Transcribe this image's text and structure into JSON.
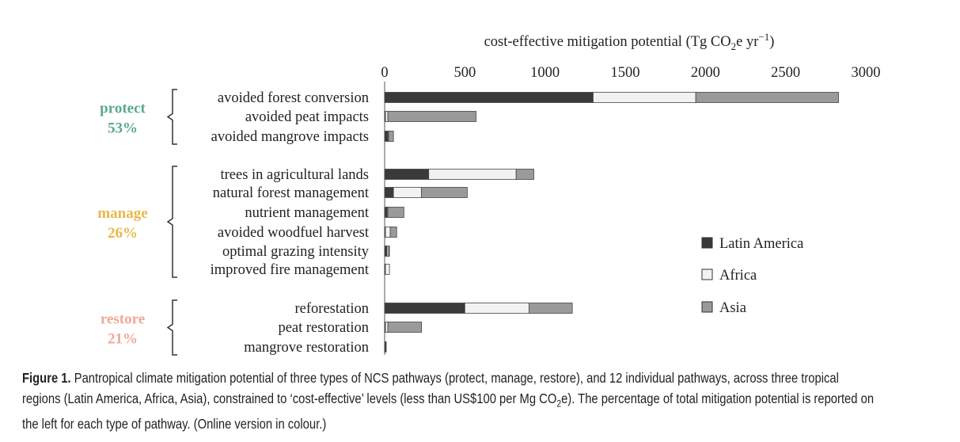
{
  "chart_data": {
    "type": "bar",
    "orientation": "horizontal",
    "stacked": true,
    "xlabel_parts": {
      "pre": "cost-effective mitigation potential (Tg CO",
      "sub": "2",
      "mid": "e yr",
      "sup": "−1",
      "post": ")"
    },
    "xlim": [
      0,
      3000
    ],
    "xticks": [
      0,
      500,
      1000,
      1500,
      2000,
      2500,
      3000
    ],
    "grid": false,
    "legend_position": "right",
    "series": [
      {
        "name": "Latin America",
        "color": "#3a3a3a"
      },
      {
        "name": "Africa",
        "color": "#f2f2f2"
      },
      {
        "name": "Asia",
        "color": "#9a9a9a"
      }
    ],
    "groups": [
      {
        "label": "protect",
        "percent": "53%",
        "color": "#5aaa8a",
        "pathways": [
          {
            "name": "avoided forest conversion",
            "values": [
              1300,
              640,
              890
            ]
          },
          {
            "name": "avoided peat impacts",
            "values": [
              5,
              15,
              550
            ]
          },
          {
            "name": "avoided mangrove impacts",
            "values": [
              20,
              5,
              30
            ]
          }
        ]
      },
      {
        "label": "manage",
        "percent": "26%",
        "color": "#e8b84a",
        "pathways": [
          {
            "name": "trees in agricultural lands",
            "values": [
              275,
              545,
              110
            ]
          },
          {
            "name": "natural forest management",
            "values": [
              55,
              175,
              285
            ]
          },
          {
            "name": "nutrient management",
            "values": [
              15,
              5,
              100
            ]
          },
          {
            "name": "avoided woodfuel harvest",
            "values": [
              5,
              30,
              40
            ]
          },
          {
            "name": "optimal grazing intensity",
            "values": [
              15,
              10,
              5
            ]
          },
          {
            "name": "improved fire management",
            "values": [
              5,
              25,
              0
            ]
          }
        ]
      },
      {
        "label": "restore",
        "percent": "21%",
        "color": "#f0a898",
        "pathways": [
          {
            "name": "reforestation",
            "values": [
              500,
              400,
              270
            ]
          },
          {
            "name": "peat restoration",
            "values": [
              5,
              15,
              210
            ]
          },
          {
            "name": "mangrove restoration",
            "values": [
              5,
              2,
              3
            ]
          }
        ]
      }
    ]
  },
  "caption": {
    "figure_label": "Figure 1.",
    "line1": " Pantropical climate mitigation potential of three types of NCS pathways (protect, manage, restore), and 12 individual pathways, across three tropical",
    "line2_pre": "regions (Latin America, Africa, Asia), constrained to ‘cost-effective’ levels (less than US$100 per Mg CO",
    "line2_sub": "2",
    "line2_post": "e). The percentage of total mitigation potential is reported on",
    "line3": "the left for each type of pathway. (Online version in colour.)"
  }
}
